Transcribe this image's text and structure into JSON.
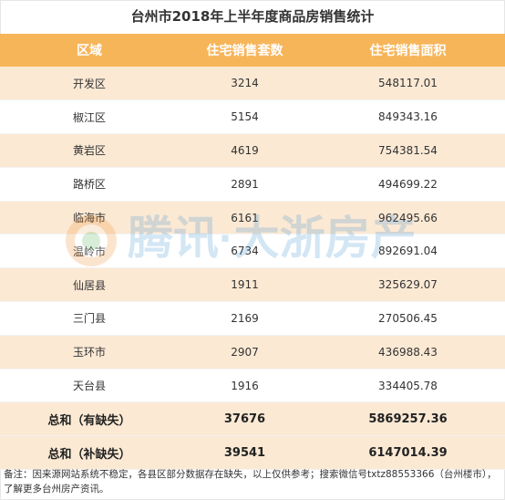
{
  "title": "台州市2018年上半年度商品房销售统计",
  "headers": {
    "region": "区域",
    "units": "住宅销售套数",
    "area": "住宅销售面积"
  },
  "rows": [
    {
      "region": "开发区",
      "units": "3214",
      "area": "548117.01"
    },
    {
      "region": "椒江区",
      "units": "5154",
      "area": "849343.16"
    },
    {
      "region": "黄岩区",
      "units": "4619",
      "area": "754381.54"
    },
    {
      "region": "路桥区",
      "units": "2891",
      "area": "494699.22"
    },
    {
      "region": "临海市",
      "units": "6161",
      "area": "962495.66"
    },
    {
      "region": "温岭市",
      "units": "6734",
      "area": "892691.04"
    },
    {
      "region": "仙居县",
      "units": "1911",
      "area": "325629.07"
    },
    {
      "region": "三门县",
      "units": "2169",
      "area": "270506.45"
    },
    {
      "region": "玉环市",
      "units": "2907",
      "area": "436988.43"
    },
    {
      "region": "天台县",
      "units": "1916",
      "area": "334405.78"
    }
  ],
  "totals": [
    {
      "label": "总和（有缺失）",
      "units": "37676",
      "area": "5869257.36"
    },
    {
      "label": "总和（补缺失）",
      "units": "39541",
      "area": "6147014.39"
    }
  ],
  "watermark": "腾讯·大浙房产",
  "note": "备注：因来源网站系统不稳定，各县区部分数据存在缺失，以上仅供参考；搜索微信号txtz88553366（台州楼市），了解更多台州房产资讯。",
  "colors": {
    "header": "#f7b55a",
    "band": "#fbe9d4",
    "watermark": "#3a8fd0"
  }
}
